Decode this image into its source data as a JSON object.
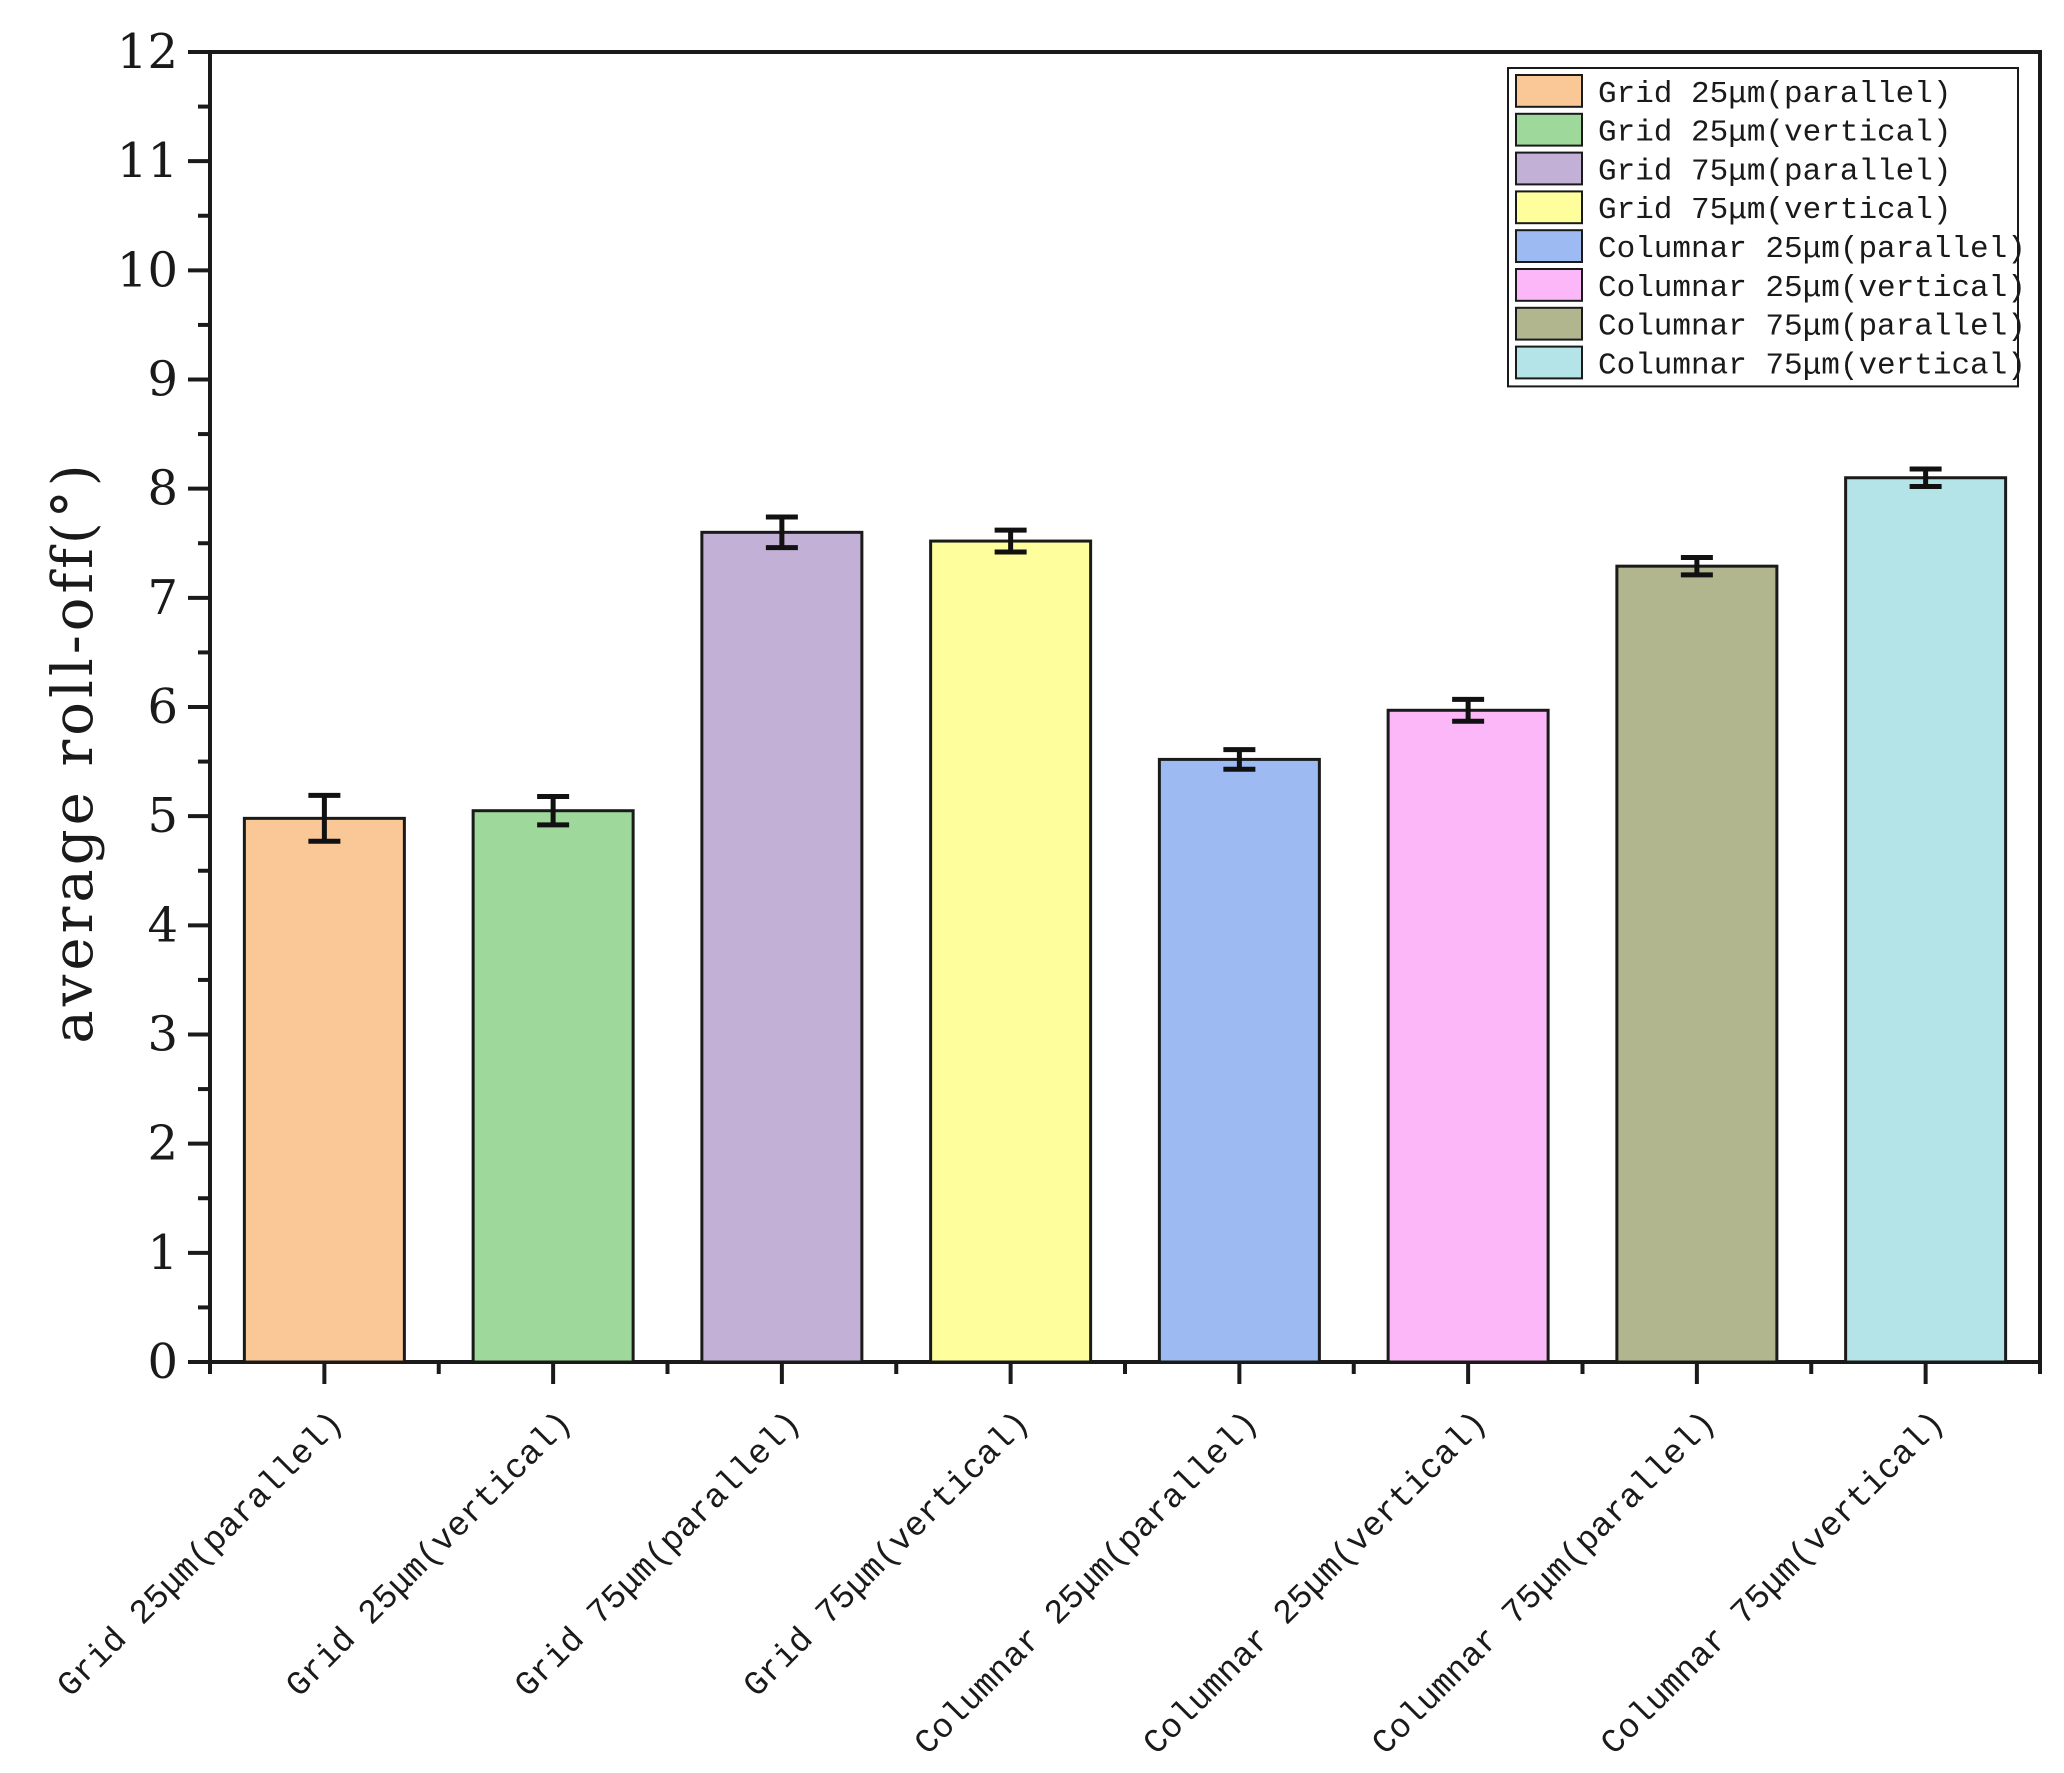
{
  "chart_data": {
    "type": "bar",
    "title": "",
    "xlabel": "",
    "ylabel": "average roll-off(°)",
    "ylim": [
      0,
      12
    ],
    "yticks": [
      "0",
      "1",
      "2",
      "3",
      "4",
      "5",
      "6",
      "7",
      "8",
      "9",
      "10",
      "11",
      "12"
    ],
    "grid": false,
    "legend_position": "top-right",
    "categories": [
      "Grid 25μm(parallel)",
      "Grid 25μm(vertical)",
      "Grid 75μm(parallel)",
      "Grid 75μm(vertical)",
      "Columnar 25μm(parallel)",
      "Columnar 25μm(vertical)",
      "Columnar 75μm(parallel)",
      "Columnar 75μm(vertical)"
    ],
    "values": [
      4.98,
      5.05,
      7.6,
      7.52,
      5.52,
      5.97,
      7.29,
      8.1
    ],
    "errors": [
      0.21,
      0.13,
      0.14,
      0.1,
      0.09,
      0.1,
      0.08,
      0.08
    ],
    "colors": [
      "#FAC896",
      "#9ED89B",
      "#C3B0D6",
      "#FEFE9C",
      "#9DBAF3",
      "#FBB7F7",
      "#B2B68F",
      "#B4E3E8"
    ],
    "legend": [
      "Grid 25μm(parallel)",
      "Grid 25μm(vertical)",
      "Grid 75μm(parallel)",
      "Grid 75μm(vertical)",
      "Columnar 25μm(parallel)",
      "Columnar 25μm(vertical)",
      "Columnar 75μm(parallel)",
      "Columnar 75μm(vertical)"
    ]
  }
}
